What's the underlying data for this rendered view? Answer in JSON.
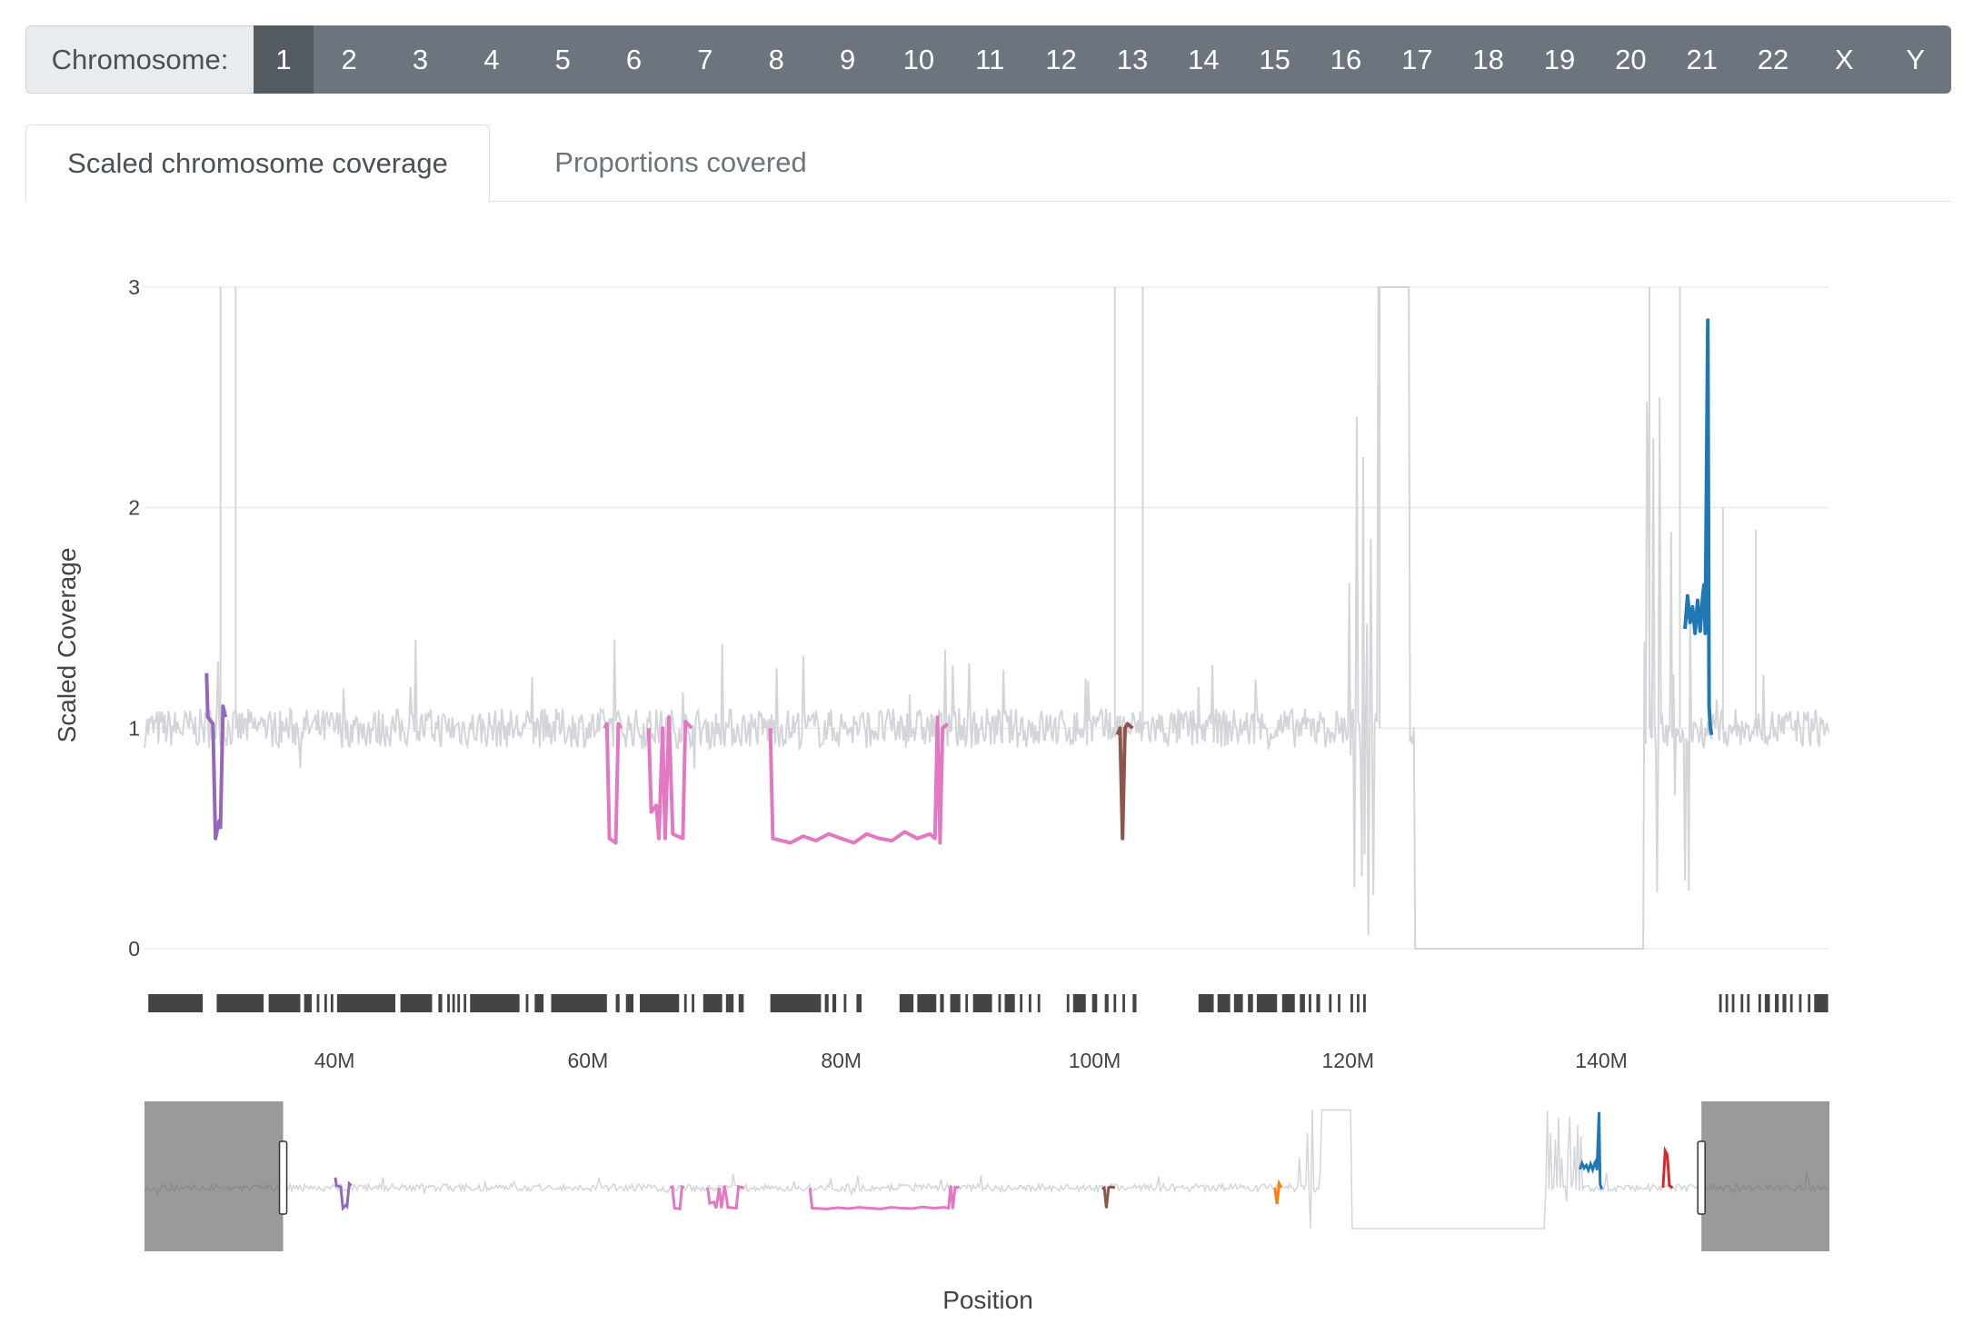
{
  "selector": {
    "label": "Chromosome:",
    "options": [
      "1",
      "2",
      "3",
      "4",
      "5",
      "6",
      "7",
      "8",
      "9",
      "10",
      "11",
      "12",
      "13",
      "14",
      "15",
      "16",
      "17",
      "18",
      "19",
      "20",
      "21",
      "22",
      "X",
      "Y"
    ],
    "selected": "1"
  },
  "tabs": [
    {
      "label": "Scaled chromosome coverage",
      "active": true
    },
    {
      "label": "Proportions covered",
      "active": false
    }
  ],
  "chart_data": {
    "type": "line",
    "xlabel": "Position",
    "ylabel": "Scaled Coverage",
    "x_unit": "M",
    "xlim": [
      25,
      158
    ],
    "ylim": [
      0,
      3
    ],
    "x_ticks": [
      40,
      60,
      80,
      100,
      120,
      140
    ],
    "x_tick_labels": [
      "40M",
      "60M",
      "80M",
      "100M",
      "120M",
      "140M"
    ],
    "y_ticks": [
      0,
      1,
      2,
      3
    ],
    "y_tick_labels": [
      "0",
      "1",
      "2",
      "3"
    ],
    "grid": true,
    "background_color": "#d3d5d9",
    "overview_range": [
      12,
      170
    ],
    "overview_selection": [
      25,
      158
    ],
    "series": [
      {
        "color": "#9467bd",
        "points": [
          [
            29.9,
            1.25
          ],
          [
            30.0,
            1.05
          ],
          [
            30.4,
            1.02
          ],
          [
            30.6,
            0.5
          ],
          [
            30.9,
            0.58
          ],
          [
            31.0,
            0.55
          ],
          [
            31.2,
            1.1
          ],
          [
            31.4,
            1.05
          ]
        ]
      },
      {
        "color": "#e377c2",
        "points": [
          [
            61.3,
            1.0
          ],
          [
            61.5,
            1.02
          ],
          [
            61.7,
            0.5
          ],
          [
            62.2,
            0.48
          ],
          [
            62.4,
            1.02
          ],
          [
            62.6,
            1.0
          ]
        ]
      },
      {
        "color": "#e377c2",
        "points": [
          [
            64.8,
            1.0
          ],
          [
            65.0,
            0.62
          ],
          [
            65.4,
            0.65
          ],
          [
            65.6,
            0.5
          ],
          [
            65.9,
            1.0
          ],
          [
            66.1,
            0.5
          ],
          [
            66.4,
            1.05
          ],
          [
            66.7,
            0.52
          ],
          [
            67.5,
            0.5
          ],
          [
            67.7,
            1.03
          ],
          [
            68.2,
            1.0
          ]
        ]
      },
      {
        "color": "#e377c2",
        "points": [
          [
            74.4,
            1.0
          ],
          [
            74.6,
            0.5
          ],
          [
            76,
            0.48
          ],
          [
            77,
            0.51
          ],
          [
            78,
            0.49
          ],
          [
            79,
            0.52
          ],
          [
            80,
            0.5
          ],
          [
            81,
            0.48
          ],
          [
            82,
            0.52
          ],
          [
            83,
            0.5
          ],
          [
            84,
            0.49
          ],
          [
            85,
            0.53
          ],
          [
            86,
            0.5
          ],
          [
            87,
            0.52
          ],
          [
            87.4,
            0.5
          ],
          [
            87.6,
            1.05
          ],
          [
            87.8,
            0.48
          ],
          [
            88.0,
            1.0
          ],
          [
            88.4,
            1.02
          ]
        ]
      },
      {
        "color": "#8c564b",
        "points": [
          [
            101.8,
            0.97
          ],
          [
            102.0,
            1.0
          ],
          [
            102.2,
            0.5
          ],
          [
            102.4,
            1.0
          ],
          [
            102.6,
            1.02
          ],
          [
            103.0,
            1.0
          ]
        ]
      },
      {
        "color": "#1f77b4",
        "points": [
          [
            146.6,
            1.45
          ],
          [
            146.8,
            1.6
          ],
          [
            147.0,
            1.48
          ],
          [
            147.2,
            1.55
          ],
          [
            147.4,
            1.43
          ],
          [
            147.6,
            1.58
          ],
          [
            147.8,
            1.44
          ],
          [
            148.0,
            1.6
          ],
          [
            148.1,
            1.65
          ],
          [
            148.2,
            1.43
          ],
          [
            148.4,
            2.85
          ],
          [
            148.5,
            1.1
          ],
          [
            148.6,
            1.0
          ],
          [
            148.7,
            0.97
          ]
        ]
      }
    ],
    "overview_series": [
      {
        "color": "#ff7f0e",
        "points": [
          [
            118,
            1.0
          ],
          [
            118.2,
            0.6
          ],
          [
            118.4,
            1.1
          ],
          [
            118.6,
            1.0
          ]
        ]
      },
      {
        "color": "#d62728",
        "points": [
          [
            154.4,
            1.0
          ],
          [
            154.6,
            1.9
          ],
          [
            154.8,
            1.8
          ],
          [
            155.0,
            1.05
          ],
          [
            155.3,
            1.0
          ]
        ]
      }
    ]
  },
  "annotation_track": {
    "color": "#444444",
    "segments": [
      [
        25.3,
        29.6
      ],
      [
        30.7,
        34.4
      ],
      [
        34.8,
        37.3
      ],
      [
        37.6,
        38.2
      ],
      [
        38.6,
        38.8
      ],
      [
        39.2,
        39.4
      ],
      [
        39.7,
        39.9
      ],
      [
        40.2,
        44.8
      ],
      [
        45.2,
        47.7
      ],
      [
        48.2,
        48.5
      ],
      [
        48.9,
        49.1
      ],
      [
        49.3,
        49.5
      ],
      [
        49.7,
        49.9
      ],
      [
        50.2,
        50.4
      ],
      [
        50.7,
        54.6
      ],
      [
        55.1,
        55.3
      ],
      [
        55.8,
        56.5
      ],
      [
        57.1,
        61.5
      ],
      [
        62.2,
        62.5
      ],
      [
        63.0,
        63.6
      ],
      [
        64.1,
        67.2
      ],
      [
        67.6,
        67.8
      ],
      [
        68.2,
        68.4
      ],
      [
        69.1,
        70.6
      ],
      [
        70.9,
        71.5
      ],
      [
        71.9,
        72.3
      ],
      [
        74.4,
        78.4
      ],
      [
        78.7,
        79.0
      ],
      [
        79.3,
        79.6
      ],
      [
        80.2,
        80.4
      ],
      [
        81.2,
        81.6
      ],
      [
        84.6,
        85.7
      ],
      [
        86.0,
        87.5
      ],
      [
        87.8,
        88.1
      ],
      [
        88.6,
        89.4
      ],
      [
        89.8,
        90.0
      ],
      [
        90.4,
        91.9
      ],
      [
        92.4,
        92.6
      ],
      [
        92.9,
        93.7
      ],
      [
        94.1,
        94.3
      ],
      [
        94.8,
        95.0
      ],
      [
        95.5,
        95.7
      ],
      [
        97.8,
        98.0
      ],
      [
        98.3,
        99.3
      ],
      [
        99.8,
        100.2
      ],
      [
        100.8,
        101.1
      ],
      [
        101.5,
        101.7
      ],
      [
        102.2,
        102.4
      ],
      [
        103.0,
        103.3
      ],
      [
        108.2,
        109.4
      ],
      [
        109.7,
        110.7
      ],
      [
        111.0,
        111.7
      ],
      [
        112.1,
        112.5
      ],
      [
        112.8,
        114.4
      ],
      [
        114.8,
        115.8
      ],
      [
        116.2,
        116.6
      ],
      [
        116.9,
        117.1
      ],
      [
        117.5,
        117.8
      ],
      [
        118.5,
        118.7
      ],
      [
        119.2,
        119.4
      ],
      [
        120.2,
        120.4
      ],
      [
        120.7,
        120.9
      ],
      [
        121.2,
        121.4
      ],
      [
        149.3,
        149.5
      ],
      [
        149.8,
        150.0
      ],
      [
        150.3,
        150.5
      ],
      [
        151.0,
        151.2
      ],
      [
        151.5,
        151.7
      ],
      [
        152.4,
        152.6
      ],
      [
        152.9,
        153.3
      ],
      [
        153.7,
        154.0
      ],
      [
        154.3,
        154.6
      ],
      [
        154.9,
        155.1
      ],
      [
        155.6,
        155.8
      ],
      [
        156.3,
        156.5
      ],
      [
        156.8,
        157.9
      ]
    ]
  }
}
